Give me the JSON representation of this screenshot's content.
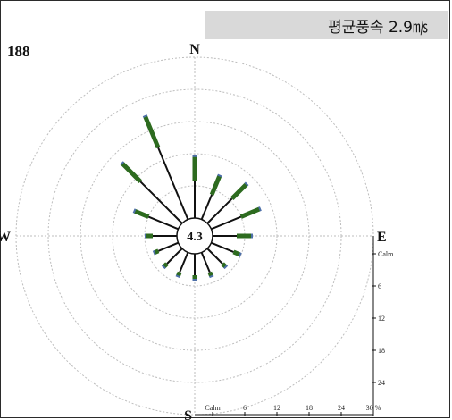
{
  "header": {
    "mean_wind_speed": "평균풍속 2.9㎧"
  },
  "station": "188",
  "chart_data": {
    "type": "wind-rose",
    "directions": [
      "N",
      "E",
      "S",
      "W"
    ],
    "center_label": "4.3",
    "scale_labels": [
      "Calm",
      "6",
      "12",
      "18",
      "24",
      "30 %"
    ],
    "vertical_scale_labels": [
      "Calm",
      "6",
      "12",
      "18",
      "24"
    ],
    "rmax_percent": 30,
    "calm_percent": 4.3,
    "colors": {
      "grid": "#bdbdbd",
      "line": "#111111",
      "low_speed": "#2d6b1f",
      "high_speed": "#4d6fa8"
    },
    "sectors": [
      {
        "angle_deg": 0,
        "total_percent": 11.7,
        "green_percent": 4.8
      },
      {
        "angle_deg": 22.5,
        "total_percent": 9.0,
        "green_percent": 4.0
      },
      {
        "angle_deg": 45,
        "total_percent": 10.5,
        "green_percent": 4.0
      },
      {
        "angle_deg": 67.5,
        "total_percent": 10.0,
        "green_percent": 4.0
      },
      {
        "angle_deg": 90,
        "total_percent": 7.5,
        "green_percent": 3.0
      },
      {
        "angle_deg": 112.5,
        "total_percent": 6.0,
        "green_percent": 1.5
      },
      {
        "angle_deg": 135,
        "total_percent": 5.0,
        "green_percent": 1.0
      },
      {
        "angle_deg": 157.5,
        "total_percent": 5.0,
        "green_percent": 1.0
      },
      {
        "angle_deg": 180,
        "total_percent": 5.0,
        "green_percent": 1.0
      },
      {
        "angle_deg": 202.5,
        "total_percent": 5.0,
        "green_percent": 1.0
      },
      {
        "angle_deg": 225,
        "total_percent": 5.0,
        "green_percent": 1.0
      },
      {
        "angle_deg": 247.5,
        "total_percent": 5.0,
        "green_percent": 1.0
      },
      {
        "angle_deg": 270,
        "total_percent": 6.0,
        "green_percent": 1.5
      },
      {
        "angle_deg": 292.5,
        "total_percent": 9.0,
        "green_percent": 3.0
      },
      {
        "angle_deg": 315,
        "total_percent": 16.0,
        "green_percent": 5.0
      },
      {
        "angle_deg": 337.5,
        "total_percent": 21.0,
        "green_percent": 6.5
      }
    ]
  }
}
